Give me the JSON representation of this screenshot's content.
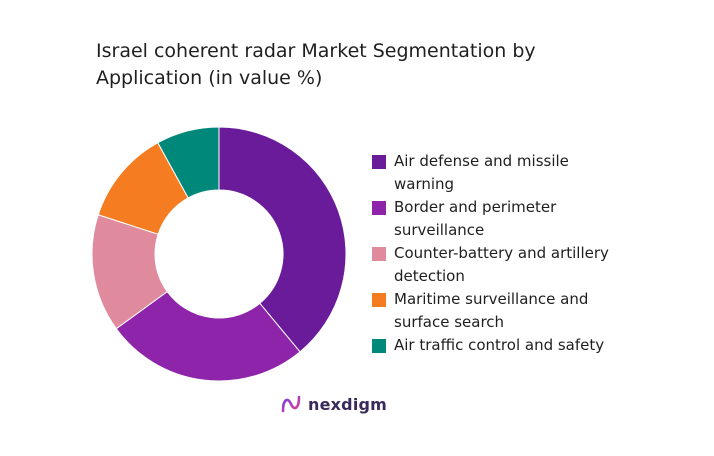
{
  "chart_data": {
    "type": "pie",
    "title": "Israel coherent radar Market Segmentation by Application (in value %)",
    "donut": true,
    "legend_position": "right",
    "categories": [
      "Air defense and missile warning",
      "Border and perimeter surveillance",
      "Counter-battery and artillery detection",
      "Maritime surveillance and surface search",
      "Air traffic control and safety"
    ],
    "values": [
      39,
      26,
      15,
      12,
      8
    ],
    "colors": [
      "#6a1b9a",
      "#8e24aa",
      "#e08a9e",
      "#f57c20",
      "#00897b"
    ]
  },
  "brand": {
    "name": "nexdigm"
  }
}
